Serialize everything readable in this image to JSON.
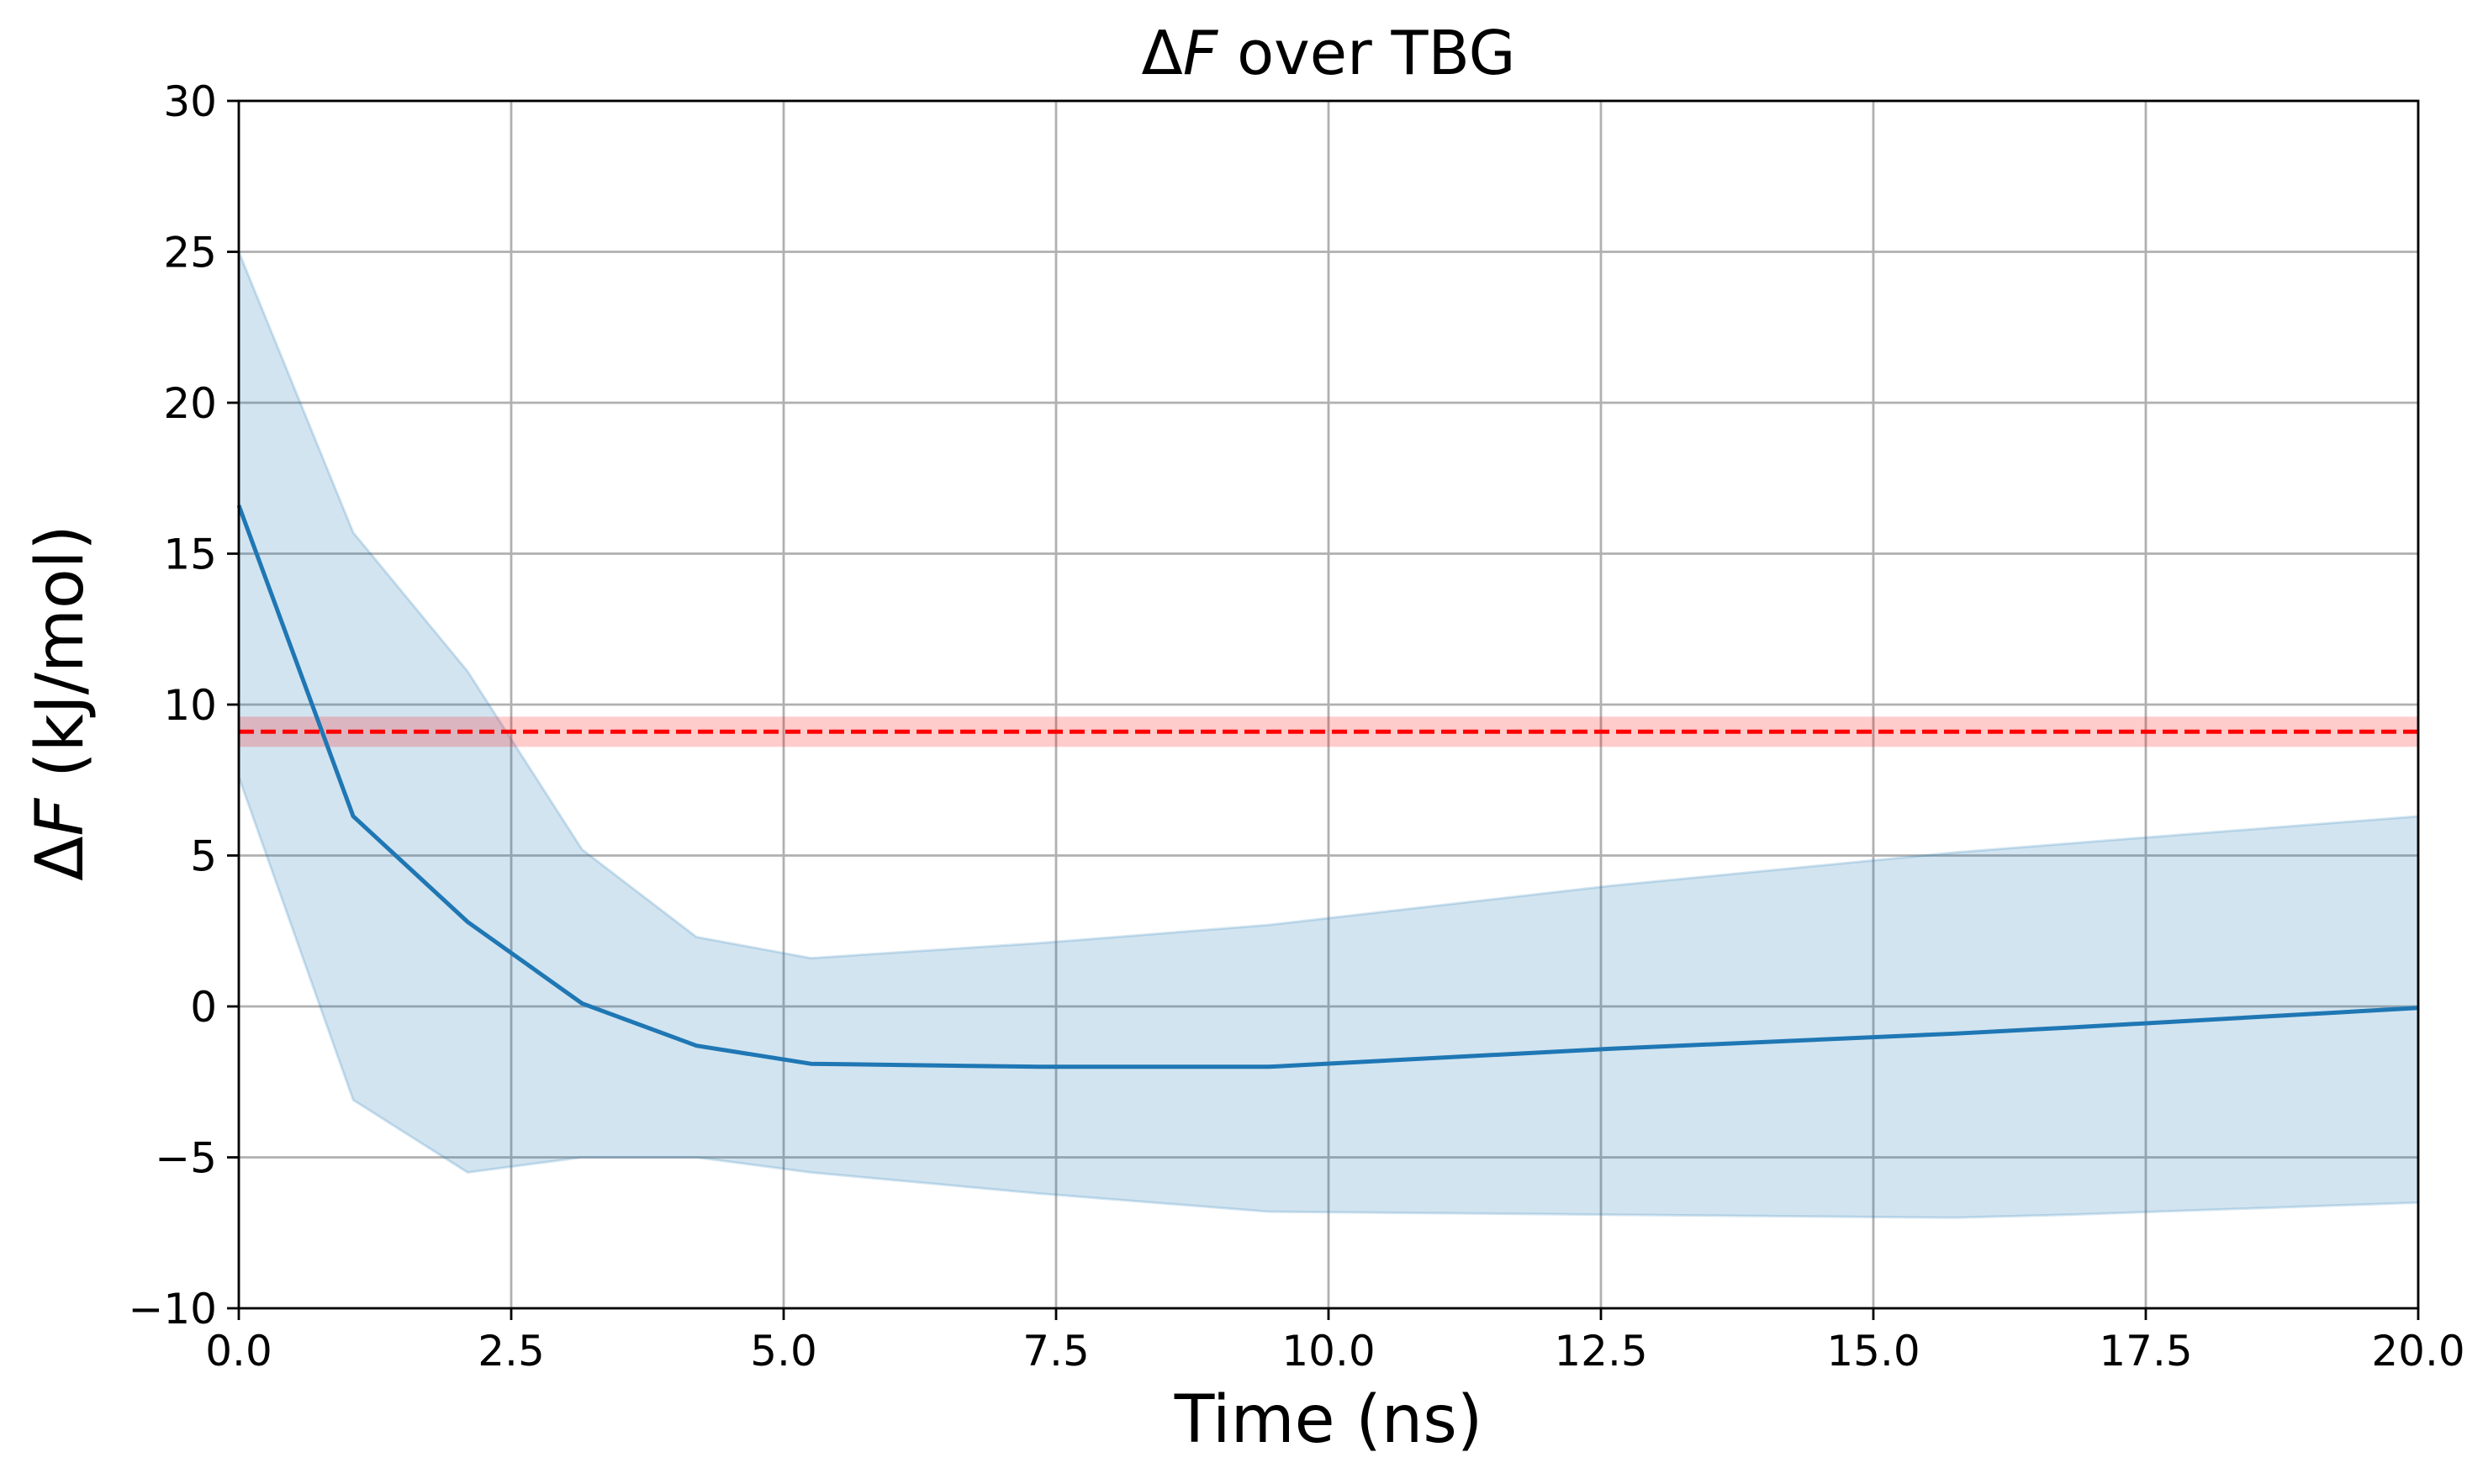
{
  "chart_data": {
    "type": "line",
    "title": {
      "prefix": "Δ",
      "variable": "F",
      "rest": " over TBG"
    },
    "xlabel": "Time (ns)",
    "ylabel": {
      "prefix": "Δ",
      "variable": "F",
      "rest": " (kJ/mol)"
    },
    "xlim": [
      0,
      20
    ],
    "ylim": [
      -10,
      30
    ],
    "grid": true,
    "x_ticks": [
      "0.0",
      "2.5",
      "5.0",
      "7.5",
      "10.0",
      "12.5",
      "15.0",
      "17.5",
      "20.0"
    ],
    "y_ticks": [
      "−10",
      "−5",
      "0",
      "5",
      "10",
      "15",
      "20",
      "25",
      "30"
    ],
    "series": [
      {
        "kind": "line_with_band",
        "color": "#1f77b4",
        "x": [
          0.0,
          1.05,
          2.1,
          3.15,
          4.2,
          5.25,
          7.35,
          9.45,
          12.6,
          15.75,
          16.8,
          20.0
        ],
        "y": [
          16.6,
          6.3,
          2.8,
          0.1,
          -1.3,
          -1.9,
          -2.0,
          -2.0,
          -1.4,
          -0.9,
          -0.7,
          -0.05
        ],
        "upper": [
          25.0,
          15.7,
          11.1,
          5.2,
          2.3,
          1.6,
          2.1,
          2.7,
          4.0,
          5.1,
          5.4,
          6.3
        ],
        "lower": [
          7.6,
          -3.1,
          -5.5,
          -5.0,
          -5.0,
          -5.5,
          -6.2,
          -6.8,
          -6.9,
          -7.0,
          -6.9,
          -6.5
        ]
      },
      {
        "kind": "reference_line",
        "color": "#ff0000",
        "y": 9.1,
        "band": [
          8.6,
          9.6
        ]
      }
    ]
  }
}
